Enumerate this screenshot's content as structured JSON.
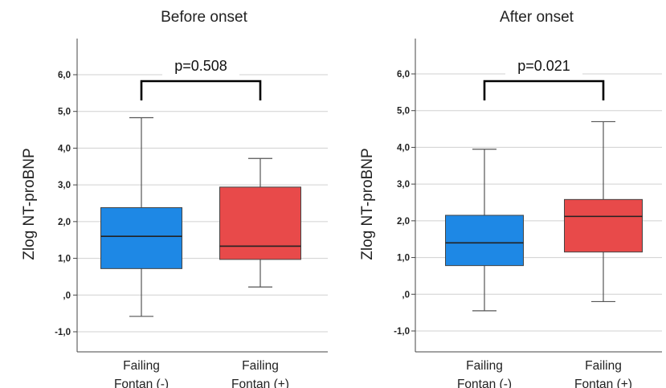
{
  "chart_data": [
    {
      "type": "boxplot",
      "title": "Before onset",
      "ylabel": "Zlog NT-proBNP",
      "ylim": [
        -1.4,
        6.4
      ],
      "yticks": [
        6.0,
        5.0,
        4.0,
        3.0,
        2.0,
        1.0,
        0.0,
        -1.0
      ],
      "ytick_labels": [
        "6,0",
        "5,0",
        "4,0",
        "3,0",
        "2,0",
        "1,0",
        ",0",
        "-1,0"
      ],
      "grid": true,
      "annotation": "p=0.508",
      "categories": [
        {
          "line1": "Failing",
          "line2": "Fontan (-)"
        },
        {
          "line1": "Failing",
          "line2": "Fontan (+)"
        }
      ],
      "boxes": [
        {
          "min": -0.58,
          "q1": 0.72,
          "median": 1.6,
          "q3": 2.38,
          "max": 4.83,
          "color": "#1E88E5"
        },
        {
          "min": 0.22,
          "q1": 0.97,
          "median": 1.33,
          "q3": 2.94,
          "max": 3.72,
          "color": "#E84A4A"
        }
      ]
    },
    {
      "type": "boxplot",
      "title": "After onset",
      "ylabel": "Zlog NT-proBNP",
      "ylim": [
        -1.4,
        6.4
      ],
      "yticks": [
        6.0,
        5.0,
        4.0,
        3.0,
        2.0,
        1.0,
        0.0,
        -1.0
      ],
      "ytick_labels": [
        "6,0",
        "5,0",
        "4,0",
        "3,0",
        "2,0",
        "1,0",
        ",0",
        "-1,0"
      ],
      "grid": true,
      "annotation": "p=0.021",
      "categories": [
        {
          "line1": "Failing",
          "line2": "Fontan (-)"
        },
        {
          "line1": "Failing",
          "line2": "Fontan (+)"
        }
      ],
      "boxes": [
        {
          "min": -0.45,
          "q1": 0.78,
          "median": 1.4,
          "q3": 2.15,
          "max": 3.95,
          "color": "#1E88E5"
        },
        {
          "min": -0.2,
          "q1": 1.15,
          "median": 2.12,
          "q3": 2.58,
          "max": 4.7,
          "color": "#E84A4A"
        }
      ]
    }
  ]
}
